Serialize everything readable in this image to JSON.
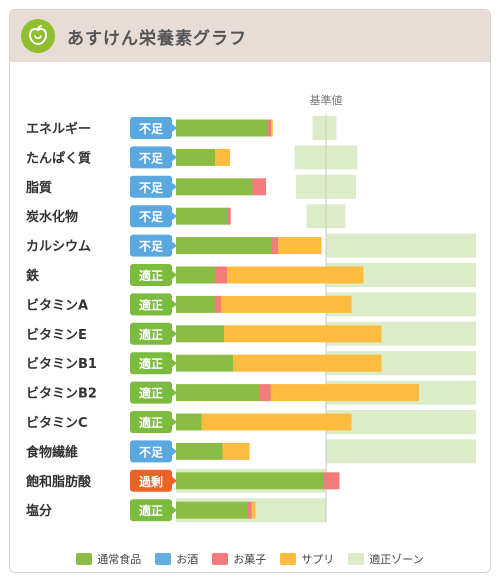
{
  "app": {
    "title": "あすけん栄養素グラフ",
    "logo_icon": "apple-icon"
  },
  "chart_data": {
    "type": "bar",
    "orientation": "horizontal",
    "stacked": true,
    "title": "あすけん栄養素グラフ",
    "reference_label": "基準値",
    "reference_value": 100,
    "xlim": [
      0,
      200
    ],
    "colors": {
      "normal_food": "#8bbd45",
      "alcohol": "#64aee0",
      "snacks": "#f47b7b",
      "supplements": "#fdbb3f",
      "zone": "#dcebc8",
      "badge_low": "#5aa8e0",
      "badge_ok": "#7bbb3e",
      "badge_over": "#ef6226"
    },
    "rows": [
      {
        "name": "エネルギー",
        "status": "不足",
        "status_key": "low",
        "normal_food": 61,
        "snacks": 2.5,
        "supplements": 1,
        "zone": [
          91,
          107
        ]
      },
      {
        "name": "たんぱく質",
        "status": "不足",
        "status_key": "low",
        "normal_food": 26,
        "snacks": 0,
        "supplements": 10,
        "zone": [
          79,
          121
        ]
      },
      {
        "name": "脂質",
        "status": "不足",
        "status_key": "low",
        "normal_food": 51,
        "snacks": 9,
        "supplements": 0,
        "zone": [
          80,
          120
        ]
      },
      {
        "name": "炭水化物",
        "status": "不足",
        "status_key": "low",
        "normal_food": 34,
        "snacks": 2.5,
        "supplements": 0,
        "zone": [
          87,
          113
        ]
      },
      {
        "name": "カルシウム",
        "status": "不足",
        "status_key": "low",
        "normal_food": 64,
        "snacks": 4,
        "supplements": 29,
        "zone": [
          100,
          200
        ]
      },
      {
        "name": "鉄",
        "status": "適正",
        "status_key": "ok",
        "normal_food": 26,
        "snacks": 8,
        "supplements": 91,
        "zone": [
          100,
          200
        ]
      },
      {
        "name": "ビタミンA",
        "status": "適正",
        "status_key": "ok",
        "normal_food": 26,
        "snacks": 4,
        "supplements": 87,
        "zone": [
          100,
          200
        ]
      },
      {
        "name": "ビタミンE",
        "status": "適正",
        "status_key": "ok",
        "normal_food": 32,
        "snacks": 0,
        "supplements": 105,
        "zone": [
          100,
          200
        ]
      },
      {
        "name": "ビタミンB1",
        "status": "適正",
        "status_key": "ok",
        "normal_food": 38,
        "snacks": 0,
        "supplements": 99,
        "zone": [
          100,
          200
        ]
      },
      {
        "name": "ビタミンB2",
        "status": "適正",
        "status_key": "ok",
        "normal_food": 56,
        "snacks": 7,
        "supplements": 99,
        "zone": [
          100,
          200
        ]
      },
      {
        "name": "ビタミンC",
        "status": "適正",
        "status_key": "ok",
        "normal_food": 17,
        "snacks": 0,
        "supplements": 100,
        "zone": [
          100,
          200
        ]
      },
      {
        "name": "食物繊維",
        "status": "不足",
        "status_key": "low",
        "normal_food": 31,
        "snacks": 0,
        "supplements": 18,
        "zone": [
          100,
          200
        ]
      },
      {
        "name": "飽和脂肪酸",
        "status": "過剰",
        "status_key": "over",
        "normal_food": 98,
        "snacks": 11,
        "supplements": 0,
        "zone": [
          0,
          100
        ]
      },
      {
        "name": "塩分",
        "status": "適正",
        "status_key": "ok",
        "normal_food": 48,
        "snacks": 2.5,
        "supplements": 2.5,
        "zone": [
          0,
          100
        ]
      }
    ],
    "legend": [
      {
        "label": "通常食品",
        "color": "#8bbd45"
      },
      {
        "label": "お酒",
        "color": "#64aee0"
      },
      {
        "label": "お菓子",
        "color": "#f47b7b"
      },
      {
        "label": "サプリ",
        "color": "#fdbb3f"
      },
      {
        "label": "適正ゾーン",
        "color": "#dcebc8"
      }
    ],
    "legend_position": "bottom"
  }
}
